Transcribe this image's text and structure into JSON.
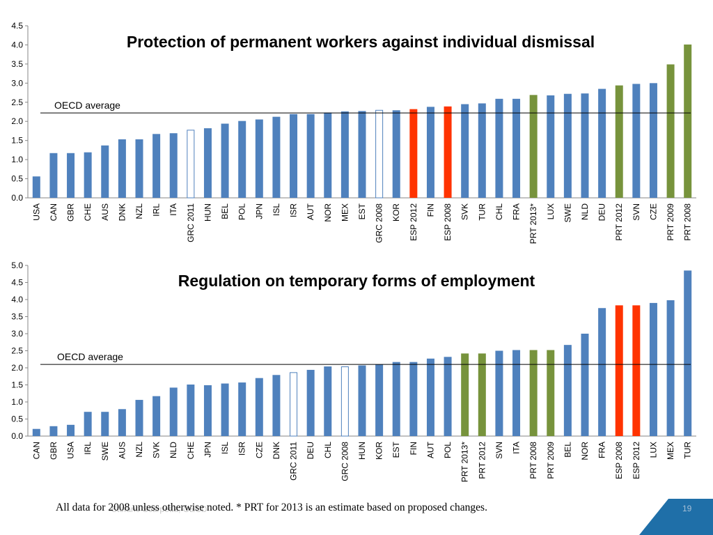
{
  "colors": {
    "blue": "#4f81bd",
    "red": "#ff3300",
    "green": "#77933c",
    "hollow_stroke": "#4f81bd",
    "footer_band": "#1f6fa8"
  },
  "chart_data": [
    {
      "type": "bar",
      "title": "Protection of permanent workers against individual dismissal",
      "ylim": [
        0,
        4.5
      ],
      "yticks": [
        "0.0",
        "0.5",
        "1.0",
        "1.5",
        "2.0",
        "2.5",
        "3.0",
        "3.5",
        "4.0",
        "4.5"
      ],
      "reference_line": {
        "label": "OECD average",
        "value": 2.22
      },
      "categories": [
        "USA",
        "CAN",
        "GBR",
        "CHE",
        "AUS",
        "DNK",
        "NZL",
        "IRL",
        "ITA",
        "GRC 2011",
        "HUN",
        "BEL",
        "POL",
        "JPN",
        "ISL",
        "ISR",
        "AUT",
        "NOR",
        "MEX",
        "EST",
        "GRC 2008",
        "KOR",
        "ESP 2012",
        "FIN",
        "ESP 2008",
        "SVK",
        "TUR",
        "CHL",
        "FRA",
        "PRT 2013*",
        "LUX",
        "SWE",
        "NLD",
        "DEU",
        "PRT 2012",
        "SVN",
        "CZE",
        "PRT 2009",
        "PRT 2008"
      ],
      "values": [
        0.56,
        1.17,
        1.17,
        1.19,
        1.37,
        1.53,
        1.53,
        1.67,
        1.69,
        1.77,
        1.82,
        1.94,
        2.01,
        2.05,
        2.12,
        2.19,
        2.19,
        2.23,
        2.26,
        2.27,
        2.29,
        2.29,
        2.32,
        2.38,
        2.39,
        2.45,
        2.47,
        2.59,
        2.59,
        2.69,
        2.68,
        2.72,
        2.73,
        2.85,
        2.94,
        2.98,
        3.0,
        3.49,
        4.01
      ],
      "styles": [
        "blue",
        "blue",
        "blue",
        "blue",
        "blue",
        "blue",
        "blue",
        "blue",
        "blue",
        "hollow",
        "blue",
        "blue",
        "blue",
        "blue",
        "blue",
        "blue",
        "blue",
        "blue",
        "blue",
        "blue",
        "hollow",
        "blue",
        "red",
        "blue",
        "red",
        "blue",
        "blue",
        "blue",
        "blue",
        "green",
        "blue",
        "blue",
        "blue",
        "blue",
        "green",
        "blue",
        "blue",
        "green",
        "green"
      ],
      "grid": false,
      "legend": "none"
    },
    {
      "type": "bar",
      "title": "Regulation on temporary forms of employment",
      "ylim": [
        0,
        5.0
      ],
      "yticks": [
        "0.0",
        "0.5",
        "1.0",
        "1.5",
        "2.0",
        "2.5",
        "3.0",
        "3.5",
        "4.0",
        "4.5",
        "5.0"
      ],
      "reference_line": {
        "label": "OECD average",
        "value": 2.1
      },
      "categories": [
        "CAN",
        "GBR",
        "USA",
        "IRL",
        "SWE",
        "AUS",
        "NZL",
        "SVK",
        "NLD",
        "CHE",
        "JPN",
        "ISL",
        "ISR",
        "CZE",
        "DNK",
        "GRC 2011",
        "DEU",
        "CHL",
        "GRC 2008",
        "HUN",
        "KOR",
        "EST",
        "FIN",
        "AUT",
        "POL",
        "PRT 2013*",
        "PRT 2012",
        "SVN",
        "ITA",
        "PRT 2008",
        "PRT 2009",
        "BEL",
        "NOR",
        "FRA",
        "ESP 2008",
        "ESP 2012",
        "LUX",
        "MEX",
        "TUR"
      ],
      "values": [
        0.21,
        0.29,
        0.33,
        0.71,
        0.71,
        0.79,
        1.06,
        1.17,
        1.42,
        1.51,
        1.49,
        1.54,
        1.57,
        1.7,
        1.79,
        1.86,
        1.94,
        2.04,
        2.03,
        2.07,
        2.1,
        2.17,
        2.17,
        2.27,
        2.32,
        2.42,
        2.42,
        2.5,
        2.52,
        2.52,
        2.52,
        2.67,
        3.0,
        3.75,
        3.83,
        3.83,
        3.9,
        3.98,
        4.85
      ],
      "styles": [
        "blue",
        "blue",
        "blue",
        "blue",
        "blue",
        "blue",
        "blue",
        "blue",
        "blue",
        "blue",
        "blue",
        "blue",
        "blue",
        "blue",
        "blue",
        "hollow",
        "blue",
        "blue",
        "hollow",
        "blue",
        "blue",
        "blue",
        "blue",
        "blue",
        "blue",
        "green",
        "green",
        "blue",
        "blue",
        "green",
        "green",
        "blue",
        "blue",
        "blue",
        "red",
        "red",
        "blue",
        "blue",
        "blue"
      ],
      "grid": false,
      "legend": "none"
    }
  ],
  "footer": {
    "note": "All data for 2008 unless otherwise noted. * PRT for 2013 is an estimate based on proposed changes.",
    "faded_label": "Stefano Scarpetta, OECD",
    "page_number": "19"
  }
}
